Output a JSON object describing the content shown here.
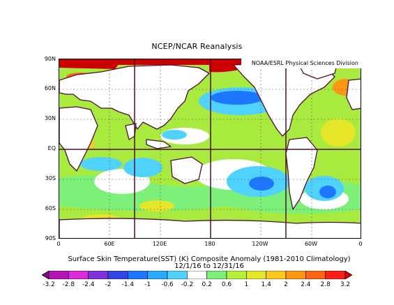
{
  "title": "NCEP/NCAR Reanalysis",
  "credit": "NOAA/ESRL Physical Sciences Division",
  "lat_labels": [
    "90N",
    "60N",
    "30N",
    "EQ",
    "30S",
    "60S",
    "90S"
  ],
  "lon_labels": [
    "0",
    "60E",
    "120E",
    "180",
    "120W",
    "60W",
    "0"
  ],
  "caption_line1": "Surface Skin Temperature(SST) (K) Composite Anomaly (1981-2010 Climatology)",
  "caption_line2": "12/1/16 to 12/31/16",
  "colorbar": {
    "ticks": [
      "-3.2",
      "-2.8",
      "-2.4",
      "-2",
      "-1.4",
      "-1",
      "-0.6",
      "-0.2",
      "0.2",
      "0.6",
      "1",
      "1.4",
      "2",
      "2.4",
      "2.8",
      "3.2"
    ],
    "colors": [
      "#7a0a7a",
      "#b414b4",
      "#dc2adc",
      "#8232dc",
      "#3246e6",
      "#1e78ff",
      "#28aaff",
      "#50d2ff",
      "#ffffff",
      "#7cf078",
      "#b4f03c",
      "#e6e628",
      "#ffc81e",
      "#ff9614",
      "#ff6414",
      "#ff1e14",
      "#cc0000"
    ]
  },
  "colors": {
    "land": "#ffffff",
    "coastline": "#4b0f32",
    "ocean_base": "#a8ea3e",
    "arctic": "#cc0000",
    "cold": "#1e78ff",
    "cool": "#50d2ff",
    "neutral": "#ffffff",
    "warm": "#ffc81e"
  }
}
